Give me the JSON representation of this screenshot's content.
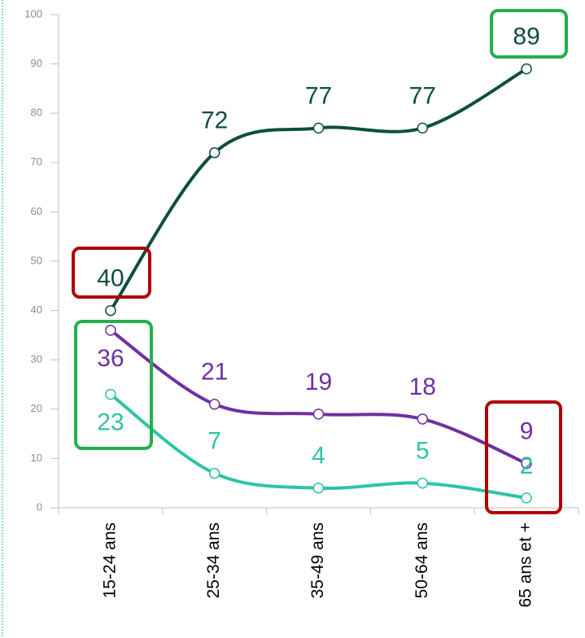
{
  "chart_data": {
    "type": "line",
    "categories": [
      "15-24 ans",
      "25-34 ans",
      "35-49 ans",
      "50-64 ans",
      "65 ans et +"
    ],
    "series": [
      {
        "color": "#0e4e42",
        "values": [
          40,
          72,
          77,
          77,
          89
        ]
      },
      {
        "color": "#7030a0",
        "values": [
          36,
          21,
          19,
          18,
          9
        ]
      },
      {
        "color": "#2ec4a6",
        "values": [
          23,
          7,
          4,
          5,
          2
        ]
      }
    ],
    "ylim": [
      0,
      100
    ],
    "yticks": [
      0,
      10,
      20,
      30,
      40,
      50,
      60,
      70,
      80,
      90,
      100
    ]
  }
}
